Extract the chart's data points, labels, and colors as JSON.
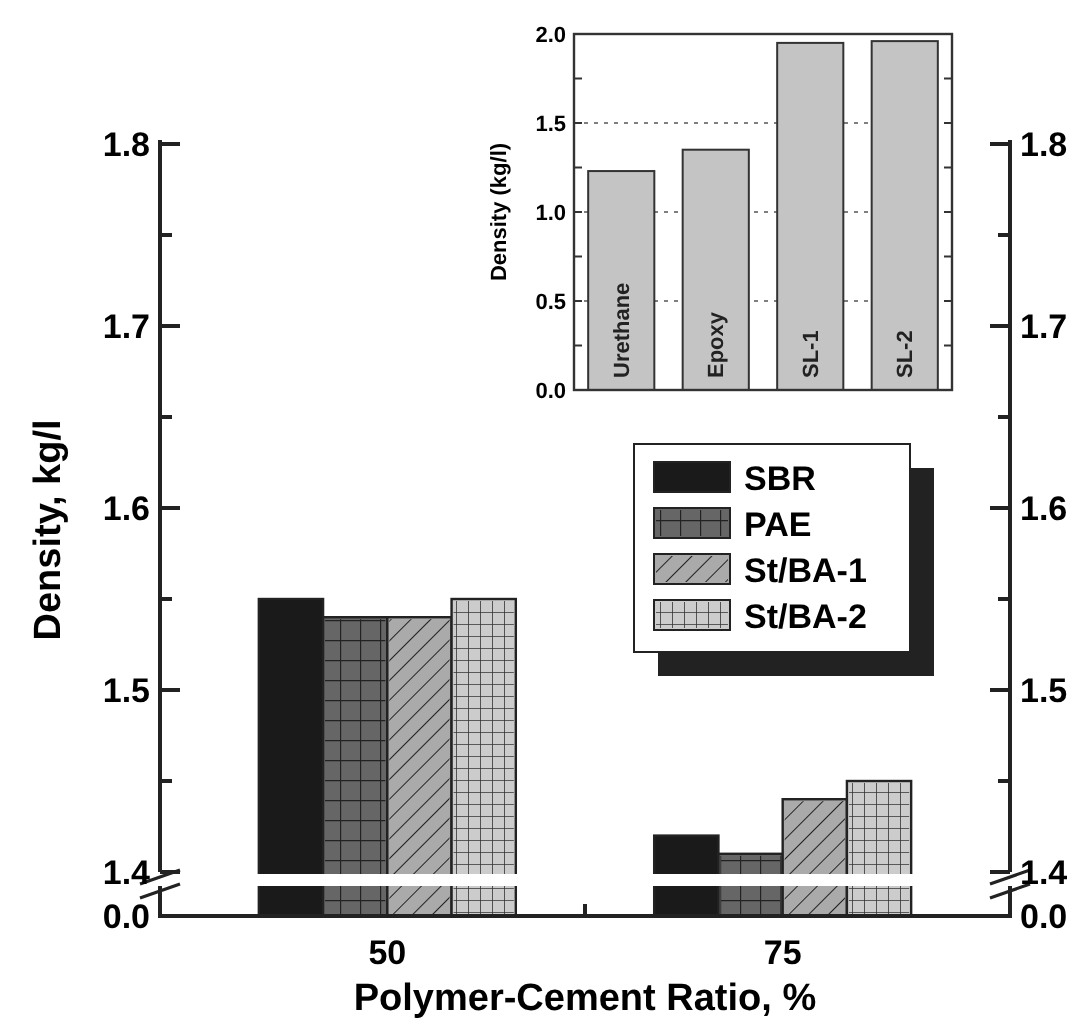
{
  "chart_data": [
    {
      "type": "bar",
      "xlabel": "Polymer-Cement Ratio, %",
      "ylabel": "Density, kg/l",
      "categories": [
        "50",
        "75"
      ],
      "series": [
        {
          "name": "SBR",
          "color": "#1a1a1a",
          "values": [
            1.55,
            1.42
          ]
        },
        {
          "name": "PAE",
          "color": "#666666",
          "values": [
            1.54,
            1.41
          ]
        },
        {
          "name": "St/BA-1",
          "color": "#aaaaaa",
          "values": [
            1.54,
            1.44
          ]
        },
        {
          "name": "St/BA-2",
          "color": "#cccccc",
          "values": [
            1.55,
            1.45
          ]
        }
      ],
      "ylim": [
        1.4,
        1.8
      ],
      "yticks": [
        1.4,
        {
          "value": 1.45,
          "label": null
        },
        1.5,
        {
          "value": 1.55,
          "label": null
        },
        1.6,
        {
          "value": 1.65,
          "label": null
        },
        1.7,
        {
          "value": 1.75,
          "label": null
        },
        1.8
      ],
      "y2lim": [
        1.4,
        1.8
      ],
      "y2ticks": [
        1.4,
        {
          "value": 1.45,
          "label": null
        },
        1.5,
        {
          "value": 1.55,
          "label": null
        },
        1.6,
        {
          "value": 1.65,
          "label": null
        },
        1.7,
        {
          "value": 1.75,
          "label": null
        },
        1.8
      ],
      "annotations": [
        "0.0",
        "0.0"
      ],
      "legend": "right",
      "grid": false
    },
    {
      "type": "bar",
      "ylabel": "Density (kg/l)",
      "categories": [
        "Urethane",
        "Epoxy",
        "SL-1",
        "SL-2"
      ],
      "values": [
        1.23,
        1.35,
        1.95,
        1.96
      ],
      "color": "#c4c4c4",
      "ylim": [
        0,
        2
      ],
      "yticks": [
        {
          "value": 0,
          "label": "0.0"
        },
        {
          "value": 0.25,
          "label": null
        },
        {
          "value": 0.5,
          "label": "0.5"
        },
        {
          "value": 0.75,
          "label": null
        },
        {
          "value": 1,
          "label": "1.0"
        },
        {
          "value": 1.25,
          "label": null
        },
        {
          "value": 1.5,
          "label": "1.5"
        },
        {
          "value": 1.75,
          "label": null
        },
        {
          "value": 2,
          "label": "2.0"
        }
      ],
      "grid": "y",
      "tick_labels": "y"
    }
  ]
}
